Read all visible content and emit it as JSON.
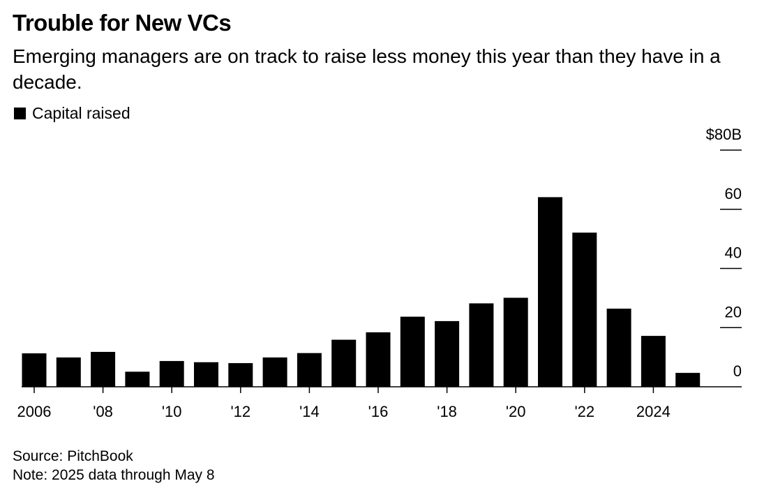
{
  "title": "Trouble for New VCs",
  "subtitle": "Emerging managers are on track to raise less money this year than they have in a decade.",
  "legend_label": "Capital raised",
  "source": "Source: PitchBook",
  "note": "Note: 2025 data through May 8",
  "colors": {
    "bar": "#000000",
    "axis": "#000000",
    "background": "#ffffff"
  },
  "chart_data": {
    "type": "bar",
    "title": "Trouble for New VCs",
    "subtitle": "Emerging managers are on track to raise less money this year than they have in a decade.",
    "categories": [
      "2006",
      "2007",
      "2008",
      "2009",
      "2010",
      "2011",
      "2012",
      "2013",
      "2014",
      "2015",
      "2016",
      "2017",
      "2018",
      "2019",
      "2020",
      "2021",
      "2022",
      "2023",
      "2024",
      "2025"
    ],
    "series": [
      {
        "name": "Capital raised",
        "values": [
          11.3,
          9.9,
          11.8,
          5.1,
          8.7,
          8.3,
          8.0,
          9.9,
          11.4,
          15.9,
          18.4,
          23.7,
          22.2,
          28.2,
          30.1,
          64.1,
          52.1,
          26.4,
          17.2,
          4.7
        ]
      }
    ],
    "xticks": [
      {
        "category": "2006",
        "label": "2006"
      },
      {
        "category": "2008",
        "label": "'08"
      },
      {
        "category": "2010",
        "label": "'10"
      },
      {
        "category": "2012",
        "label": "'12"
      },
      {
        "category": "2014",
        "label": "'14"
      },
      {
        "category": "2016",
        "label": "'16"
      },
      {
        "category": "2018",
        "label": "'18"
      },
      {
        "category": "2020",
        "label": "'20"
      },
      {
        "category": "2022",
        "label": "'22"
      },
      {
        "category": "2024",
        "label": "2024"
      }
    ],
    "yticks": [
      {
        "value": 0,
        "label": "0"
      },
      {
        "value": 20,
        "label": "20"
      },
      {
        "value": 40,
        "label": "40"
      },
      {
        "value": 60,
        "label": "60"
      },
      {
        "value": 80,
        "label": "$80B"
      }
    ],
    "xlabel": "",
    "ylabel": "",
    "ylim": [
      0,
      80
    ],
    "y_axis_side": "right",
    "grid": false,
    "legend_position": "top-left"
  }
}
